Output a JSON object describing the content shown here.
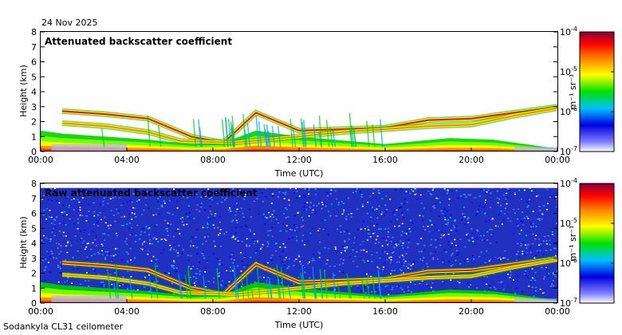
{
  "date": "24 Nov 2025",
  "footer": "Sodankyla CL31 ceilometer",
  "chart_data": [
    {
      "type": "heatmap",
      "title": "Attenuated backscatter coefficient",
      "xlabel": "Time (UTC)",
      "ylabel": "Height (km)",
      "xticks": [
        "00:00",
        "04:00",
        "08:00",
        "12:00",
        "16:00",
        "20:00",
        "00:00"
      ],
      "xlim_hours": [
        0,
        24
      ],
      "yticks": [
        0,
        1,
        2,
        3,
        4,
        5,
        6,
        7,
        8
      ],
      "ylim": [
        0,
        8
      ],
      "colorbar": {
        "unit": "m⁻¹ sr⁻¹",
        "ticks": [
          "10-4",
          "10-5",
          "10-6",
          "10-7"
        ],
        "scale": "log",
        "range": [
          1e-07,
          0.0001
        ]
      },
      "features": {
        "noise_background": false,
        "cloud_layer_1_height_km": [
          [
            1.0,
            2.7
          ],
          [
            3.0,
            2.5
          ],
          [
            5.0,
            2.2
          ],
          [
            7.0,
            1.0
          ],
          [
            8.5,
            0.6
          ],
          [
            10.0,
            2.6
          ],
          [
            12.0,
            1.4
          ],
          [
            16.0,
            1.6
          ],
          [
            18.0,
            2.1
          ],
          [
            20.0,
            2.2
          ],
          [
            22.0,
            2.6
          ],
          [
            24.0,
            3.0
          ]
        ],
        "cloud_layer_2_height_km": [
          [
            1.0,
            1.9
          ],
          [
            3.0,
            1.7
          ],
          [
            5.0,
            1.3
          ],
          [
            6.5,
            0.7
          ],
          [
            9.0,
            0.6
          ],
          [
            12.0,
            1.0
          ],
          [
            14.0,
            1.3
          ],
          [
            16.0,
            1.5
          ],
          [
            18.0,
            1.7
          ],
          [
            20.0,
            1.8
          ],
          [
            22.0,
            2.4
          ],
          [
            24.0,
            2.9
          ]
        ]
      }
    },
    {
      "type": "heatmap",
      "title": "Raw attenuated backscatter coefficient",
      "xlabel": "Time (UTC)",
      "ylabel": "Height (km)",
      "xticks": [
        "00:00",
        "04:00",
        "08:00",
        "12:00",
        "16:00",
        "20:00",
        "00:00"
      ],
      "xlim_hours": [
        0,
        24
      ],
      "yticks": [
        0,
        1,
        2,
        3,
        4,
        5,
        6,
        7,
        8
      ],
      "ylim": [
        0,
        8
      ],
      "colorbar": {
        "unit": "m⁻¹ sr⁻¹",
        "ticks": [
          "10-4",
          "10-5",
          "10-6",
          "10-7"
        ],
        "scale": "log",
        "range": [
          1e-07,
          0.0001
        ]
      },
      "features": {
        "noise_background": true,
        "cloud_layer_1_height_km": [
          [
            1.0,
            2.7
          ],
          [
            3.0,
            2.5
          ],
          [
            5.0,
            2.2
          ],
          [
            7.0,
            1.0
          ],
          [
            8.5,
            0.6
          ],
          [
            10.0,
            2.6
          ],
          [
            12.0,
            1.4
          ],
          [
            16.0,
            1.6
          ],
          [
            18.0,
            2.1
          ],
          [
            20.0,
            2.2
          ],
          [
            22.0,
            2.6
          ],
          [
            24.0,
            3.0
          ]
        ],
        "cloud_layer_2_height_km": [
          [
            1.0,
            1.9
          ],
          [
            3.0,
            1.7
          ],
          [
            5.0,
            1.3
          ],
          [
            6.5,
            0.7
          ],
          [
            9.0,
            0.6
          ],
          [
            12.0,
            1.0
          ],
          [
            14.0,
            1.3
          ],
          [
            16.0,
            1.5
          ],
          [
            18.0,
            1.7
          ],
          [
            20.0,
            1.8
          ],
          [
            22.0,
            2.4
          ],
          [
            24.0,
            2.9
          ]
        ]
      }
    }
  ]
}
